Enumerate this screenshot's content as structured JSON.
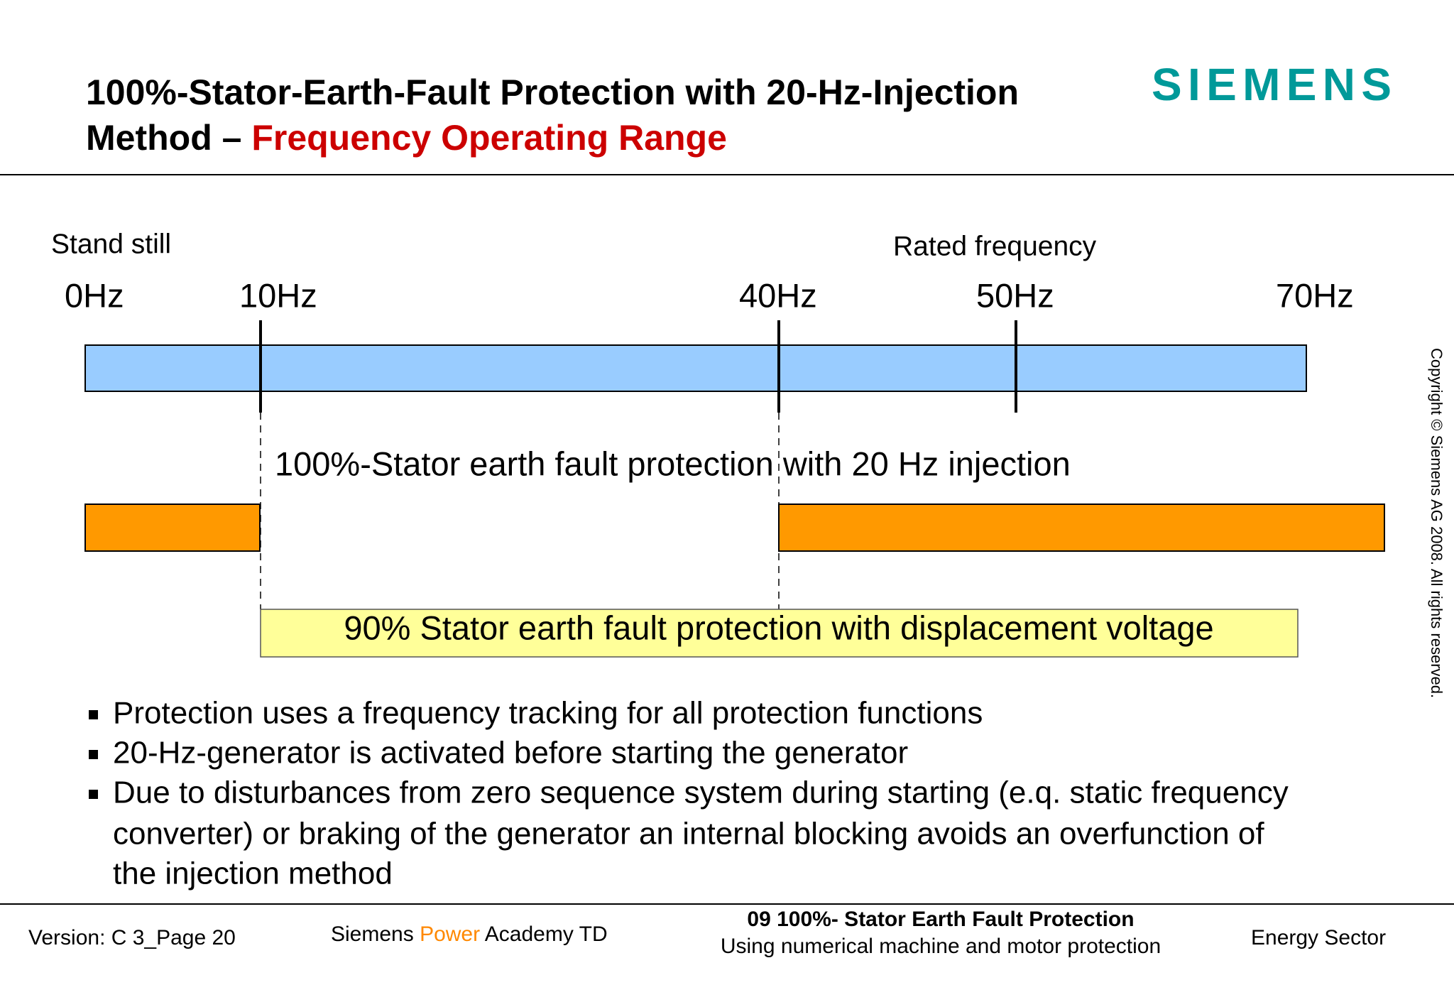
{
  "header": {
    "title_line1": "100%-Stator-Earth-Fault Protection with 20-Hz-Injection",
    "title_line2_prefix": "Method – ",
    "title_line2_highlight": "Frequency Operating Range",
    "logo": "SIEMENS"
  },
  "diagram": {
    "stand_still": "Stand still",
    "rated_frequency": "Rated frequency",
    "frequencies": [
      "0Hz",
      "10Hz",
      "40Hz",
      "50Hz",
      "70Hz"
    ],
    "injection_label": "100%-Stator earth fault protection with 20 Hz injection",
    "displacement_label": "90% Stator earth fault protection with displacement voltage"
  },
  "bullets": [
    "Protection uses a frequency tracking for all protection functions",
    "20-Hz-generator is activated before starting the generator",
    "Due to disturbances from zero sequence system during starting (e.q. static frequency",
    "converter) or braking of the generator an internal blocking avoids an overfunction of",
    "the injection method"
  ],
  "copyright": "Copyright © Siemens AG 2008. All rights reserved.",
  "footer": {
    "version": "Version: C 3_Page 20",
    "academy_prefix": "Siemens ",
    "academy_highlight": "Power",
    "academy_suffix": " Academy TD",
    "chapter": "09  100%- Stator Earth Fault Protection",
    "subtitle": "Using numerical machine and motor protection",
    "sector": "Energy Sector"
  }
}
